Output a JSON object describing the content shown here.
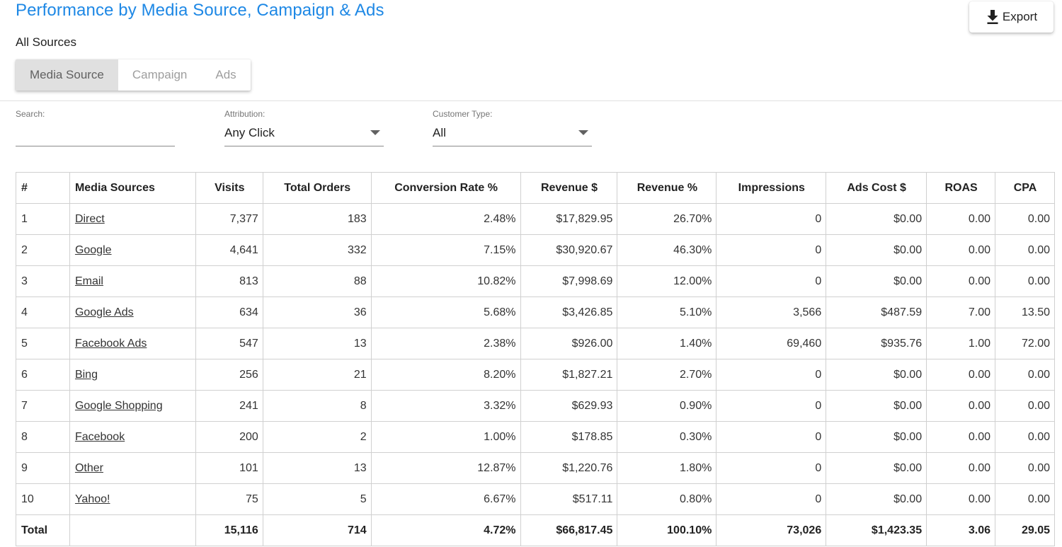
{
  "header": {
    "title": "Performance by Media Source, Campaign & Ads",
    "subtitle": "All Sources",
    "export_label": "Export"
  },
  "tabs": [
    {
      "label": "Media Source",
      "active": true
    },
    {
      "label": "Campaign",
      "active": false
    },
    {
      "label": "Ads",
      "active": false
    }
  ],
  "filters": {
    "search": {
      "label": "Search:",
      "value": ""
    },
    "attribution": {
      "label": "Attribution:",
      "value": "Any Click"
    },
    "customer_type": {
      "label": "Customer Type:",
      "value": "All"
    }
  },
  "table": {
    "columns": [
      "#",
      "Media Sources",
      "Visits",
      "Total Orders",
      "Conversion Rate %",
      "Revenue $",
      "Revenue %",
      "Impressions",
      "Ads Cost $",
      "ROAS",
      "CPA"
    ],
    "rows": [
      [
        "1",
        "Direct",
        "7,377",
        "183",
        "2.48%",
        "$17,829.95",
        "26.70%",
        "0",
        "$0.00",
        "0.00",
        "0.00"
      ],
      [
        "2",
        "Google",
        "4,641",
        "332",
        "7.15%",
        "$30,920.67",
        "46.30%",
        "0",
        "$0.00",
        "0.00",
        "0.00"
      ],
      [
        "3",
        "Email",
        "813",
        "88",
        "10.82%",
        "$7,998.69",
        "12.00%",
        "0",
        "$0.00",
        "0.00",
        "0.00"
      ],
      [
        "4",
        "Google Ads",
        "634",
        "36",
        "5.68%",
        "$3,426.85",
        "5.10%",
        "3,566",
        "$487.59",
        "7.00",
        "13.50"
      ],
      [
        "5",
        "Facebook Ads",
        "547",
        "13",
        "2.38%",
        "$926.00",
        "1.40%",
        "69,460",
        "$935.76",
        "1.00",
        "72.00"
      ],
      [
        "6",
        "Bing",
        "256",
        "21",
        "8.20%",
        "$1,827.21",
        "2.70%",
        "0",
        "$0.00",
        "0.00",
        "0.00"
      ],
      [
        "7",
        "Google Shopping",
        "241",
        "8",
        "3.32%",
        "$629.93",
        "0.90%",
        "0",
        "$0.00",
        "0.00",
        "0.00"
      ],
      [
        "8",
        "Facebook",
        "200",
        "2",
        "1.00%",
        "$178.85",
        "0.30%",
        "0",
        "$0.00",
        "0.00",
        "0.00"
      ],
      [
        "9",
        "Other",
        "101",
        "13",
        "12.87%",
        "$1,220.76",
        "1.80%",
        "0",
        "$0.00",
        "0.00",
        "0.00"
      ],
      [
        "10",
        "Yahoo!",
        "75",
        "5",
        "6.67%",
        "$517.11",
        "0.80%",
        "0",
        "$0.00",
        "0.00",
        "0.00"
      ]
    ],
    "total": [
      "Total",
      "",
      "15,116",
      "714",
      "4.72%",
      "$66,817.45",
      "100.10%",
      "73,026",
      "$1,423.35",
      "3.06",
      "29.05"
    ]
  }
}
